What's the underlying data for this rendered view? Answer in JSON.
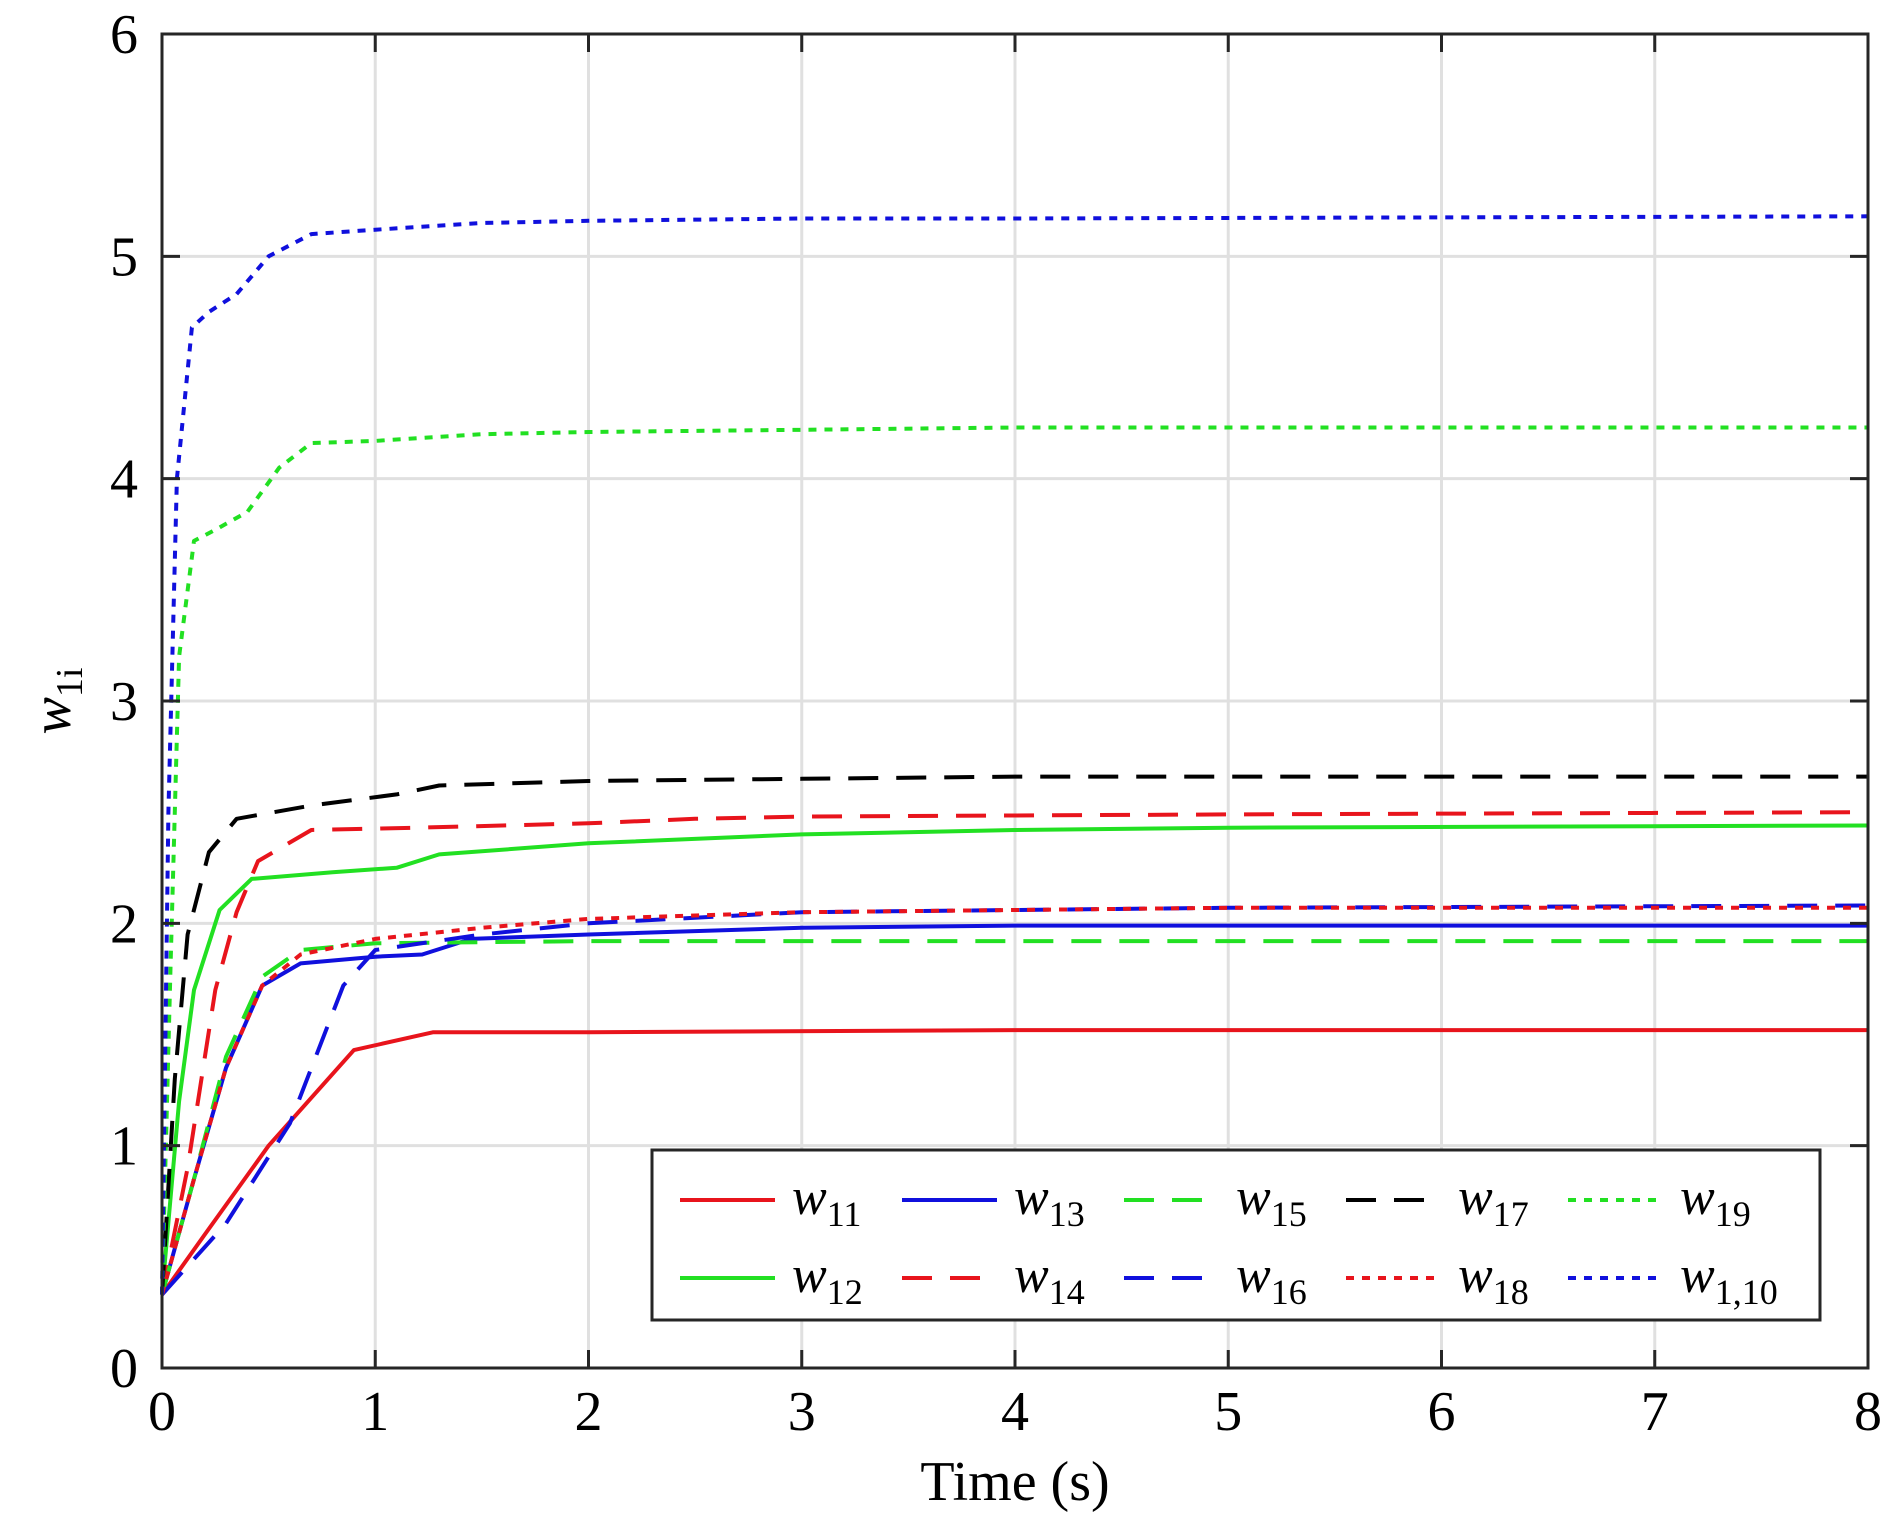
{
  "chart_data": {
    "type": "line",
    "xlabel": "Time (s)",
    "ylabel": {
      "base": "w",
      "sub": "1i"
    },
    "xlim": [
      0,
      8
    ],
    "ylim": [
      0,
      6
    ],
    "xticks": [
      "0",
      "1",
      "2",
      "3",
      "4",
      "5",
      "6",
      "7",
      "8"
    ],
    "yticks": [
      "0",
      "1",
      "2",
      "3",
      "4",
      "5",
      "6"
    ],
    "grid": true,
    "legend_position": "bottom-right",
    "legend_columns": 5,
    "series": [
      {
        "name": "w",
        "sub": "11",
        "color": "#e8141c",
        "dash": "solid",
        "points": [
          [
            0,
            0.33
          ],
          [
            0.2,
            0.6
          ],
          [
            0.5,
            1.0
          ],
          [
            0.9,
            1.43
          ],
          [
            1.27,
            1.51
          ],
          [
            2,
            1.51
          ],
          [
            4,
            1.52
          ],
          [
            8,
            1.52
          ]
        ]
      },
      {
        "name": "w",
        "sub": "12",
        "color": "#22e022",
        "dash": "solid",
        "points": [
          [
            0,
            0.33
          ],
          [
            0.08,
            1.2
          ],
          [
            0.15,
            1.7
          ],
          [
            0.27,
            2.06
          ],
          [
            0.42,
            2.2
          ],
          [
            0.8,
            2.23
          ],
          [
            1.1,
            2.25
          ],
          [
            1.3,
            2.31
          ],
          [
            2,
            2.36
          ],
          [
            3,
            2.4
          ],
          [
            4,
            2.42
          ],
          [
            5,
            2.43
          ],
          [
            8,
            2.44
          ]
        ]
      },
      {
        "name": "w",
        "sub": "13",
        "color": "#1010dd",
        "dash": "solid",
        "points": [
          [
            0,
            0.33
          ],
          [
            0.15,
            0.85
          ],
          [
            0.3,
            1.35
          ],
          [
            0.47,
            1.72
          ],
          [
            0.65,
            1.82
          ],
          [
            1,
            1.85
          ],
          [
            1.22,
            1.86
          ],
          [
            1.45,
            1.93
          ],
          [
            2,
            1.95
          ],
          [
            3,
            1.98
          ],
          [
            4,
            1.99
          ],
          [
            8,
            1.99
          ]
        ]
      },
      {
        "name": "w",
        "sub": "14",
        "color": "#e8141c",
        "dash": "dash",
        "points": [
          [
            0,
            0.33
          ],
          [
            0.12,
            0.9
          ],
          [
            0.25,
            1.7
          ],
          [
            0.35,
            2.05
          ],
          [
            0.45,
            2.28
          ],
          [
            0.7,
            2.42
          ],
          [
            1.2,
            2.43
          ],
          [
            2,
            2.45
          ],
          [
            2.5,
            2.47
          ],
          [
            3,
            2.48
          ],
          [
            5,
            2.49
          ],
          [
            8,
            2.5
          ]
        ]
      },
      {
        "name": "w",
        "sub": "15",
        "color": "#22e022",
        "dash": "dash",
        "points": [
          [
            0,
            0.33
          ],
          [
            0.15,
            0.85
          ],
          [
            0.3,
            1.4
          ],
          [
            0.47,
            1.76
          ],
          [
            0.65,
            1.88
          ],
          [
            1,
            1.91
          ],
          [
            2,
            1.92
          ],
          [
            8,
            1.92
          ]
        ]
      },
      {
        "name": "w",
        "sub": "16",
        "color": "#1010dd",
        "dash": "dash",
        "points": [
          [
            0,
            0.33
          ],
          [
            0.3,
            0.65
          ],
          [
            0.6,
            1.1
          ],
          [
            0.85,
            1.72
          ],
          [
            1,
            1.88
          ],
          [
            1.5,
            1.95
          ],
          [
            2,
            2.0
          ],
          [
            3,
            2.05
          ],
          [
            4,
            2.06
          ],
          [
            5,
            2.07
          ],
          [
            8,
            2.08
          ]
        ]
      },
      {
        "name": "w",
        "sub": "17",
        "color": "#000000",
        "dash": "dash",
        "points": [
          [
            0,
            0.33
          ],
          [
            0.06,
            1.3
          ],
          [
            0.12,
            1.95
          ],
          [
            0.22,
            2.32
          ],
          [
            0.35,
            2.47
          ],
          [
            0.7,
            2.53
          ],
          [
            1.1,
            2.58
          ],
          [
            1.3,
            2.62
          ],
          [
            2,
            2.64
          ],
          [
            3,
            2.65
          ],
          [
            4,
            2.66
          ],
          [
            8,
            2.66
          ]
        ]
      },
      {
        "name": "w",
        "sub": "18",
        "color": "#e8141c",
        "dash": "dot",
        "points": [
          [
            0,
            0.33
          ],
          [
            0.15,
            0.85
          ],
          [
            0.3,
            1.35
          ],
          [
            0.47,
            1.72
          ],
          [
            0.65,
            1.86
          ],
          [
            1,
            1.93
          ],
          [
            1.5,
            1.98
          ],
          [
            2,
            2.02
          ],
          [
            3,
            2.05
          ],
          [
            4,
            2.06
          ],
          [
            5,
            2.07
          ],
          [
            8,
            2.07
          ]
        ]
      },
      {
        "name": "w",
        "sub": "19",
        "color": "#22e022",
        "dash": "dot",
        "points": [
          [
            0,
            0.33
          ],
          [
            0.04,
            1.8
          ],
          [
            0.08,
            3.2
          ],
          [
            0.15,
            3.72
          ],
          [
            0.25,
            3.77
          ],
          [
            0.4,
            3.85
          ],
          [
            0.55,
            4.05
          ],
          [
            0.7,
            4.16
          ],
          [
            1,
            4.17
          ],
          [
            1.5,
            4.2
          ],
          [
            2,
            4.21
          ],
          [
            3,
            4.22
          ],
          [
            4,
            4.23
          ],
          [
            8,
            4.23
          ]
        ]
      },
      {
        "name": "w",
        "sub": "1,10",
        "color": "#1010dd",
        "dash": "dot",
        "points": [
          [
            0,
            0.33
          ],
          [
            0.03,
            2.5
          ],
          [
            0.07,
            4.0
          ],
          [
            0.14,
            4.68
          ],
          [
            0.22,
            4.75
          ],
          [
            0.35,
            4.83
          ],
          [
            0.5,
            5.0
          ],
          [
            0.7,
            5.1
          ],
          [
            1,
            5.12
          ],
          [
            1.5,
            5.15
          ],
          [
            2,
            5.16
          ],
          [
            3,
            5.17
          ],
          [
            4,
            5.17
          ],
          [
            8,
            5.18
          ]
        ]
      }
    ]
  }
}
